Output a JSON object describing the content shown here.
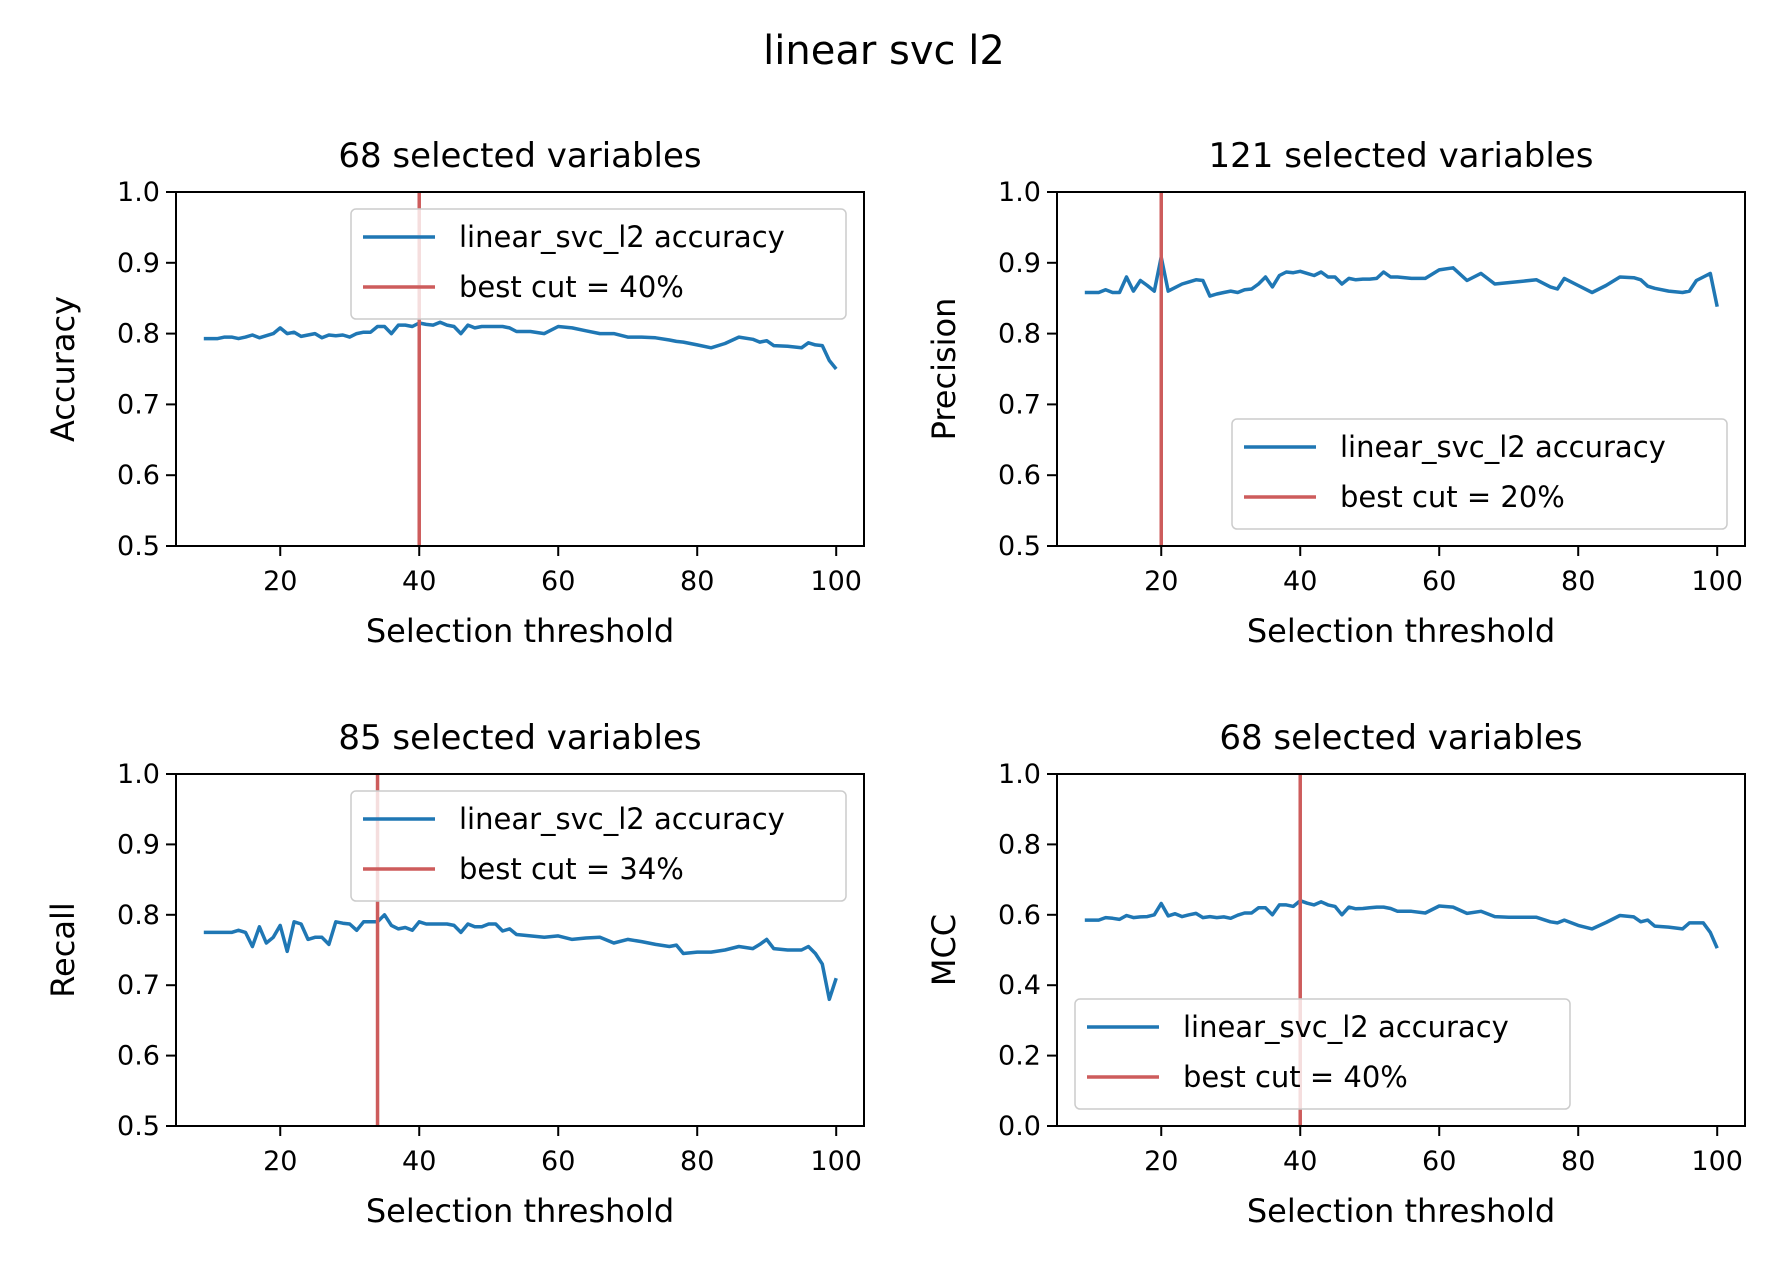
{
  "suptitle": "linear svc l2",
  "colors": {
    "series": "#1f77b4",
    "cut": "#cd5c5c",
    "axes": "#000000",
    "legend_border": "#cccccc"
  },
  "chart_data": [
    {
      "type": "line",
      "title": "68 selected variables",
      "xlabel": "Selection threshold",
      "ylabel": "Accuracy",
      "xlim": [
        5,
        104
      ],
      "ylim": [
        0.5,
        1.0
      ],
      "xticks": [
        20,
        40,
        60,
        80,
        100
      ],
      "yticks": [
        0.5,
        0.6,
        0.7,
        0.8,
        0.9,
        1.0
      ],
      "ytick_labels": [
        "0.5",
        "0.6",
        "0.7",
        "0.8",
        "0.9",
        "1.0"
      ],
      "legend_position": "upper right",
      "grid": false,
      "series": [
        {
          "name": "linear_svc_l2 accuracy",
          "x": [
            9,
            10,
            11,
            12,
            13,
            14,
            15,
            16,
            17,
            18,
            19,
            20,
            21,
            22,
            23,
            24,
            25,
            26,
            27,
            28,
            29,
            30,
            31,
            32,
            33,
            34,
            35,
            36,
            37,
            38,
            39,
            40,
            41,
            42,
            43,
            44,
            45,
            46,
            47,
            48,
            49,
            50,
            51,
            52,
            53,
            54,
            56,
            58,
            60,
            62,
            64,
            66,
            68,
            70,
            72,
            74,
            76,
            77,
            78,
            80,
            82,
            84,
            86,
            88,
            89,
            90,
            91,
            93,
            95,
            96,
            97,
            98,
            99,
            100
          ],
          "y": [
            0.793,
            0.793,
            0.793,
            0.795,
            0.795,
            0.793,
            0.795,
            0.798,
            0.794,
            0.797,
            0.8,
            0.808,
            0.8,
            0.802,
            0.796,
            0.798,
            0.8,
            0.794,
            0.798,
            0.797,
            0.798,
            0.795,
            0.8,
            0.802,
            0.802,
            0.81,
            0.81,
            0.8,
            0.812,
            0.812,
            0.81,
            0.815,
            0.813,
            0.812,
            0.816,
            0.812,
            0.81,
            0.8,
            0.812,
            0.808,
            0.81,
            0.81,
            0.81,
            0.81,
            0.808,
            0.803,
            0.803,
            0.8,
            0.81,
            0.808,
            0.804,
            0.8,
            0.8,
            0.795,
            0.795,
            0.794,
            0.791,
            0.789,
            0.788,
            0.784,
            0.78,
            0.786,
            0.795,
            0.792,
            0.788,
            0.79,
            0.783,
            0.782,
            0.78,
            0.787,
            0.784,
            0.783,
            0.762,
            0.75
          ]
        }
      ],
      "best_cut": {
        "name": "best cut = 40%",
        "x": 40
      }
    },
    {
      "type": "line",
      "title": "121 selected variables",
      "xlabel": "Selection threshold",
      "ylabel": "Precision",
      "xlim": [
        5,
        104
      ],
      "ylim": [
        0.5,
        1.0
      ],
      "xticks": [
        20,
        40,
        60,
        80,
        100
      ],
      "yticks": [
        0.5,
        0.6,
        0.7,
        0.8,
        0.9,
        1.0
      ],
      "ytick_labels": [
        "0.5",
        "0.6",
        "0.7",
        "0.8",
        "0.9",
        "1.0"
      ],
      "legend_position": "lower right",
      "grid": false,
      "series": [
        {
          "name": "linear_svc_l2 accuracy",
          "x": [
            9,
            10,
            11,
            12,
            13,
            14,
            15,
            16,
            17,
            18,
            19,
            20,
            21,
            22,
            23,
            24,
            25,
            26,
            27,
            28,
            29,
            30,
            31,
            32,
            33,
            34,
            35,
            36,
            37,
            38,
            39,
            40,
            41,
            42,
            43,
            44,
            45,
            46,
            47,
            48,
            49,
            50,
            51,
            52,
            53,
            54,
            56,
            58,
            60,
            62,
            64,
            66,
            68,
            70,
            72,
            74,
            76,
            77,
            78,
            80,
            82,
            84,
            86,
            88,
            89,
            90,
            91,
            93,
            95,
            96,
            97,
            98,
            99,
            100
          ],
          "y": [
            0.858,
            0.858,
            0.858,
            0.862,
            0.858,
            0.858,
            0.88,
            0.86,
            0.875,
            0.868,
            0.86,
            0.908,
            0.86,
            0.865,
            0.87,
            0.873,
            0.876,
            0.875,
            0.853,
            0.856,
            0.858,
            0.86,
            0.858,
            0.862,
            0.863,
            0.87,
            0.88,
            0.866,
            0.882,
            0.887,
            0.886,
            0.888,
            0.885,
            0.882,
            0.887,
            0.88,
            0.88,
            0.87,
            0.878,
            0.876,
            0.877,
            0.877,
            0.878,
            0.887,
            0.88,
            0.88,
            0.878,
            0.878,
            0.89,
            0.893,
            0.875,
            0.885,
            0.87,
            0.872,
            0.874,
            0.876,
            0.866,
            0.863,
            0.878,
            0.868,
            0.858,
            0.868,
            0.88,
            0.879,
            0.876,
            0.867,
            0.864,
            0.86,
            0.858,
            0.86,
            0.875,
            0.88,
            0.885,
            0.838
          ]
        }
      ],
      "best_cut": {
        "name": "best cut = 20%",
        "x": 20
      }
    },
    {
      "type": "line",
      "title": "85 selected variables",
      "xlabel": "Selection threshold",
      "ylabel": "Recall",
      "xlim": [
        5,
        104
      ],
      "ylim": [
        0.5,
        1.0
      ],
      "xticks": [
        20,
        40,
        60,
        80,
        100
      ],
      "yticks": [
        0.5,
        0.6,
        0.7,
        0.8,
        0.9,
        1.0
      ],
      "ytick_labels": [
        "0.5",
        "0.6",
        "0.7",
        "0.8",
        "0.9",
        "1.0"
      ],
      "legend_position": "upper right",
      "grid": false,
      "series": [
        {
          "name": "linear_svc_l2 accuracy",
          "x": [
            9,
            10,
            11,
            12,
            13,
            14,
            15,
            16,
            17,
            18,
            19,
            20,
            21,
            22,
            23,
            24,
            25,
            26,
            27,
            28,
            29,
            30,
            31,
            32,
            33,
            34,
            35,
            36,
            37,
            38,
            39,
            40,
            41,
            42,
            43,
            44,
            45,
            46,
            47,
            48,
            49,
            50,
            51,
            52,
            53,
            54,
            56,
            58,
            60,
            62,
            64,
            66,
            68,
            70,
            72,
            74,
            76,
            77,
            78,
            80,
            82,
            84,
            86,
            88,
            89,
            90,
            91,
            93,
            95,
            96,
            97,
            98,
            99,
            100
          ],
          "y": [
            0.775,
            0.775,
            0.775,
            0.775,
            0.775,
            0.778,
            0.775,
            0.755,
            0.783,
            0.76,
            0.768,
            0.785,
            0.748,
            0.79,
            0.787,
            0.765,
            0.768,
            0.768,
            0.758,
            0.79,
            0.788,
            0.787,
            0.778,
            0.79,
            0.79,
            0.79,
            0.8,
            0.785,
            0.78,
            0.782,
            0.778,
            0.79,
            0.787,
            0.787,
            0.787,
            0.787,
            0.785,
            0.775,
            0.787,
            0.783,
            0.783,
            0.787,
            0.787,
            0.777,
            0.78,
            0.772,
            0.77,
            0.768,
            0.77,
            0.765,
            0.767,
            0.768,
            0.76,
            0.765,
            0.762,
            0.758,
            0.755,
            0.757,
            0.745,
            0.747,
            0.747,
            0.75,
            0.755,
            0.752,
            0.758,
            0.765,
            0.752,
            0.75,
            0.75,
            0.755,
            0.745,
            0.73,
            0.68,
            0.71
          ]
        }
      ],
      "best_cut": {
        "name": "best cut = 34%",
        "x": 34
      }
    },
    {
      "type": "line",
      "title": "68 selected variables",
      "xlabel": "Selection threshold",
      "ylabel": "MCC",
      "xlim": [
        5,
        104
      ],
      "ylim": [
        0.0,
        1.0
      ],
      "xticks": [
        20,
        40,
        60,
        80,
        100
      ],
      "yticks": [
        0.0,
        0.2,
        0.4,
        0.6,
        0.8,
        1.0
      ],
      "ytick_labels": [
        "0.0",
        "0.2",
        "0.4",
        "0.6",
        "0.8",
        "1.0"
      ],
      "legend_position": "lower left",
      "grid": false,
      "series": [
        {
          "name": "linear_svc_l2 accuracy",
          "x": [
            9,
            10,
            11,
            12,
            13,
            14,
            15,
            16,
            17,
            18,
            19,
            20,
            21,
            22,
            23,
            24,
            25,
            26,
            27,
            28,
            29,
            30,
            31,
            32,
            33,
            34,
            35,
            36,
            37,
            38,
            39,
            40,
            41,
            42,
            43,
            44,
            45,
            46,
            47,
            48,
            49,
            50,
            51,
            52,
            53,
            54,
            56,
            58,
            60,
            62,
            64,
            66,
            68,
            70,
            72,
            74,
            76,
            77,
            78,
            80,
            82,
            84,
            86,
            88,
            89,
            90,
            91,
            93,
            95,
            96,
            97,
            98,
            99,
            100
          ],
          "y": [
            0.585,
            0.585,
            0.585,
            0.592,
            0.59,
            0.587,
            0.598,
            0.592,
            0.594,
            0.595,
            0.6,
            0.632,
            0.597,
            0.603,
            0.595,
            0.6,
            0.604,
            0.592,
            0.595,
            0.592,
            0.594,
            0.59,
            0.599,
            0.605,
            0.605,
            0.62,
            0.62,
            0.6,
            0.628,
            0.628,
            0.624,
            0.64,
            0.633,
            0.628,
            0.637,
            0.628,
            0.624,
            0.6,
            0.622,
            0.617,
            0.618,
            0.62,
            0.622,
            0.622,
            0.618,
            0.61,
            0.61,
            0.605,
            0.625,
            0.622,
            0.604,
            0.61,
            0.595,
            0.593,
            0.593,
            0.593,
            0.58,
            0.577,
            0.585,
            0.57,
            0.56,
            0.578,
            0.598,
            0.594,
            0.58,
            0.585,
            0.568,
            0.565,
            0.56,
            0.577,
            0.577,
            0.577,
            0.55,
            0.505
          ]
        }
      ],
      "best_cut": {
        "name": "best cut = 40%",
        "x": 40
      }
    }
  ]
}
